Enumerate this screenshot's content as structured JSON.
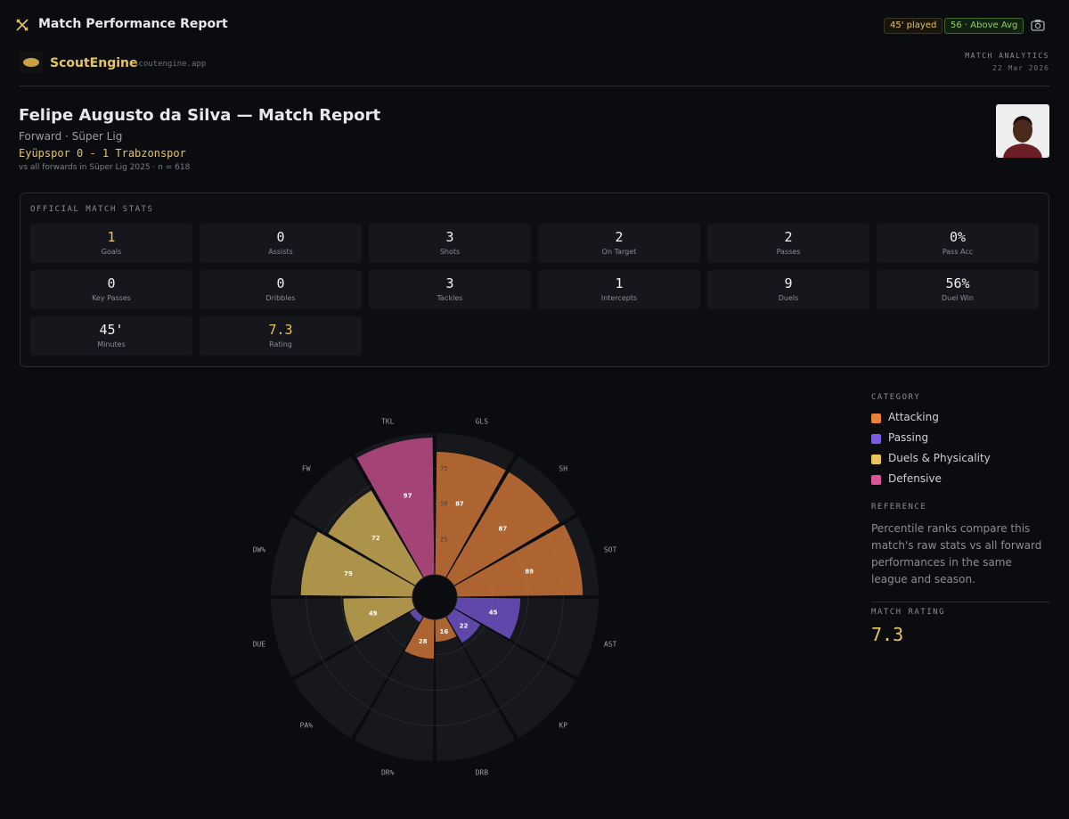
{
  "header": {
    "title": "Match Performance Report",
    "badges": [
      "45' played",
      "56 · Above Avg"
    ]
  },
  "brand": {
    "name": "ScoutEngine",
    "url": "scoutengine.app",
    "section": "MATCH ANALYTICS",
    "date": "22 Mar 2026"
  },
  "player": {
    "title": "Felipe Augusto da Silva — Match Report",
    "position": "Forward · Süper Lig",
    "match": "Eyüpspor 0 - 1 Trabzonspor",
    "comparison": "vs all forwards in Süper Lig 2025 · n = 618"
  },
  "stats": {
    "title": "OFFICIAL MATCH STATS",
    "items": [
      {
        "value": "1",
        "label": "Goals"
      },
      {
        "value": "0",
        "label": "Assists"
      },
      {
        "value": "3",
        "label": "Shots"
      },
      {
        "value": "2",
        "label": "On Target"
      },
      {
        "value": "2",
        "label": "Passes"
      },
      {
        "value": "0%",
        "label": "Pass Acc"
      },
      {
        "value": "0",
        "label": "Key Passes"
      },
      {
        "value": "0",
        "label": "Dribbles"
      },
      {
        "value": "3",
        "label": "Tackles"
      },
      {
        "value": "1",
        "label": "Intercepts"
      },
      {
        "value": "9",
        "label": "Duels"
      },
      {
        "value": "56%",
        "label": "Duel Win"
      },
      {
        "value": "45'",
        "label": "Minutes"
      },
      {
        "value": "7.3",
        "label": "Rating"
      }
    ]
  },
  "chart_data": {
    "type": "pizza",
    "categories": [
      "GLS",
      "SH",
      "SOT",
      "AST",
      "KP",
      "DRB",
      "DR%",
      "PA%",
      "DUE",
      "DW%",
      "FW",
      "TKL"
    ],
    "values": [
      87,
      87,
      89,
      45,
      22,
      16,
      28,
      5,
      49,
      79,
      72,
      97
    ],
    "colors": [
      "#e8823a",
      "#e8823a",
      "#e8823a",
      "#7c5ce0",
      "#7c5ce0",
      "#e8823a",
      "#e8823a",
      "#7c5ce0",
      "#e8c45c",
      "#e8c45c",
      "#e8c45c",
      "#d9559a"
    ],
    "ylim": [
      0,
      100
    ],
    "yticks": [
      25,
      50,
      75
    ],
    "legend": {
      "title": "CATEGORY",
      "items": [
        {
          "name": "Attacking",
          "color": "#e8823a"
        },
        {
          "name": "Passing",
          "color": "#7c5ce0"
        },
        {
          "name": "Duels & Physicality",
          "color": "#e8c45c"
        },
        {
          "name": "Defensive",
          "color": "#d9559a"
        }
      ]
    }
  },
  "reference": {
    "title": "REFERENCE",
    "text": "Percentile ranks compare this match's raw stats vs all forward performances in the same league and season."
  },
  "rating": {
    "title": "MATCH RATING",
    "value": "7.3"
  }
}
